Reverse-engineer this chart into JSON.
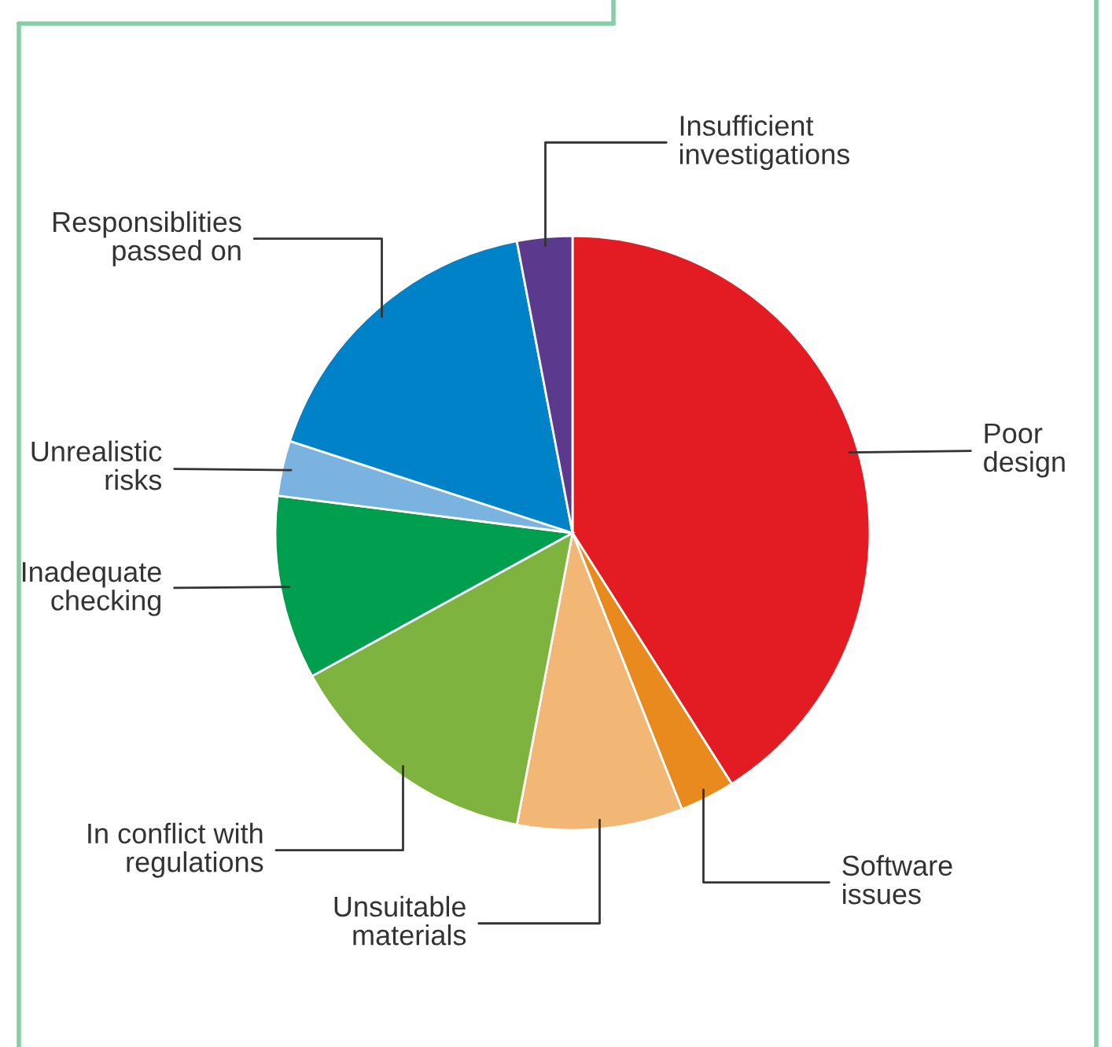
{
  "chart_data": {
    "type": "pie",
    "categories": [
      "Poor\ndesign",
      "Software\nissues",
      "Unsuitable\nmaterials",
      "In conflict with\nregulations",
      "Inadequate\nchecking",
      "Unrealistic\nrisks",
      "Responsiblities\npassed on",
      "Insufficient\ninvestigations"
    ],
    "values": [
      41,
      3,
      9,
      14,
      10,
      3,
      17,
      3
    ],
    "colors": [
      "#e31b23",
      "#e88a1e",
      "#f2b675",
      "#7db33e",
      "#009e4f",
      "#7ab3e0",
      "#0082c8",
      "#5b3a8e"
    ],
    "legend": false
  }
}
